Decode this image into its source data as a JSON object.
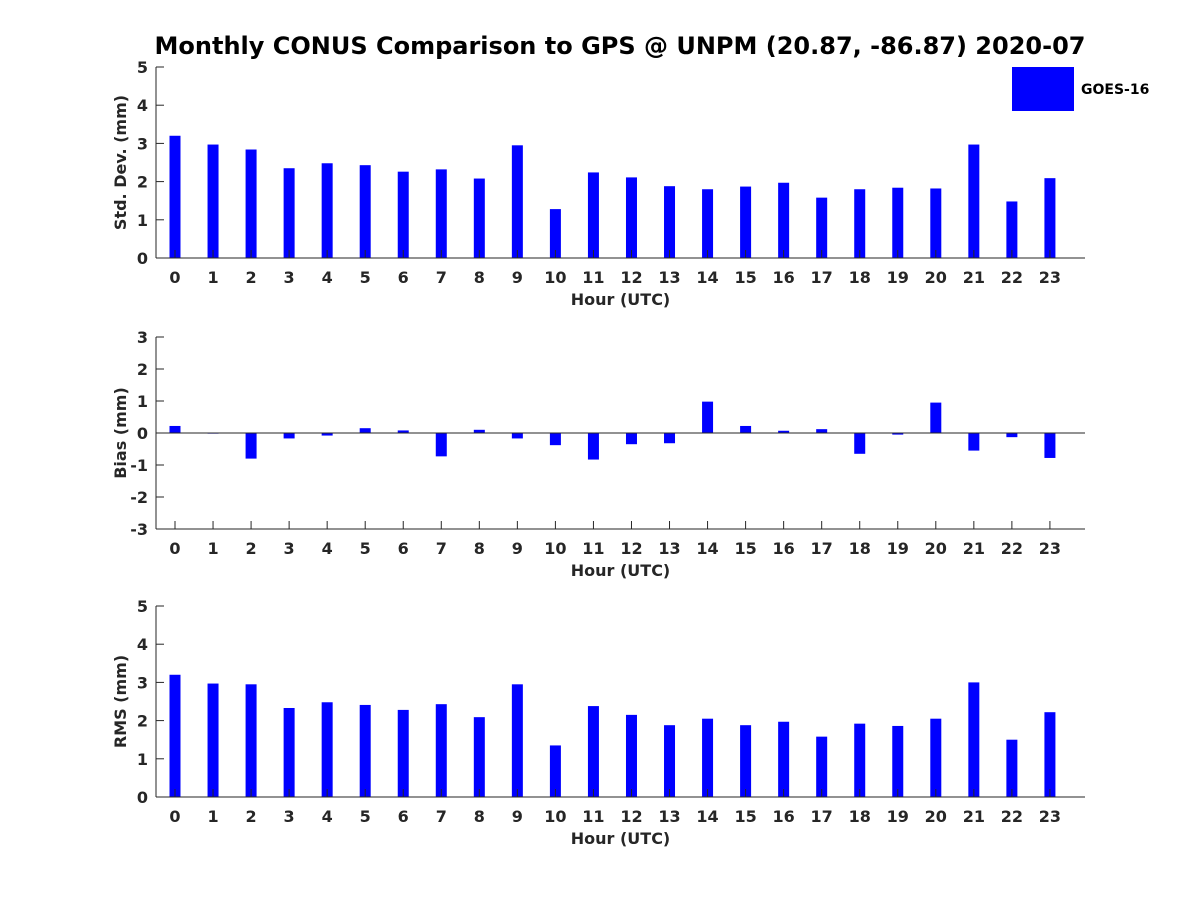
{
  "title": "Monthly CONUS Comparison to GPS @ UNPM (20.87, -86.87) 2020-07",
  "legend": {
    "label": "GOES-16",
    "color": "#0000ff",
    "placement": "top-right"
  },
  "chart_data": [
    {
      "type": "bar",
      "xlabel": "Hour (UTC)",
      "ylabel": "Std. Dev. (mm)",
      "ylim": [
        0,
        5
      ],
      "yticks": [
        0,
        1,
        2,
        3,
        4,
        5
      ],
      "categories": [
        0,
        1,
        2,
        3,
        4,
        5,
        6,
        7,
        8,
        9,
        10,
        11,
        12,
        13,
        14,
        15,
        16,
        17,
        18,
        19,
        20,
        21,
        22,
        23
      ],
      "series": [
        {
          "name": "GOES-16",
          "color": "#0000ff",
          "values": [
            3.2,
            2.97,
            2.84,
            2.35,
            2.48,
            2.43,
            2.26,
            2.32,
            2.08,
            2.95,
            1.28,
            2.24,
            2.11,
            1.88,
            1.8,
            1.87,
            1.97,
            1.58,
            1.8,
            1.84,
            1.82,
            2.97,
            1.48,
            2.09
          ]
        }
      ],
      "grid": false
    },
    {
      "type": "bar",
      "xlabel": "Hour (UTC)",
      "ylabel": "Bias (mm)",
      "ylim": [
        -3,
        3
      ],
      "yticks": [
        -3,
        -2,
        -1,
        0,
        1,
        2,
        3
      ],
      "categories": [
        0,
        1,
        2,
        3,
        4,
        5,
        6,
        7,
        8,
        9,
        10,
        11,
        12,
        13,
        14,
        15,
        16,
        17,
        18,
        19,
        20,
        21,
        22,
        23
      ],
      "series": [
        {
          "name": "GOES-16",
          "color": "#0000ff",
          "values": [
            0.22,
            -0.02,
            -0.8,
            -0.17,
            -0.08,
            0.15,
            0.08,
            -0.73,
            0.1,
            -0.17,
            -0.38,
            -0.83,
            -0.35,
            -0.32,
            0.98,
            0.22,
            0.07,
            0.12,
            -0.65,
            -0.05,
            0.95,
            -0.55,
            -0.13,
            -0.78
          ]
        }
      ],
      "grid": false
    },
    {
      "type": "bar",
      "xlabel": "Hour (UTC)",
      "ylabel": "RMS (mm)",
      "ylim": [
        0,
        5
      ],
      "yticks": [
        0,
        1,
        2,
        3,
        4,
        5
      ],
      "categories": [
        0,
        1,
        2,
        3,
        4,
        5,
        6,
        7,
        8,
        9,
        10,
        11,
        12,
        13,
        14,
        15,
        16,
        17,
        18,
        19,
        20,
        21,
        22,
        23
      ],
      "series": [
        {
          "name": "GOES-16",
          "color": "#0000ff",
          "values": [
            3.2,
            2.97,
            2.95,
            2.33,
            2.48,
            2.41,
            2.28,
            2.43,
            2.09,
            2.95,
            1.35,
            2.38,
            2.15,
            1.88,
            2.05,
            1.88,
            1.97,
            1.58,
            1.92,
            1.86,
            2.05,
            3.0,
            1.5,
            2.22
          ]
        }
      ],
      "grid": false
    }
  ]
}
